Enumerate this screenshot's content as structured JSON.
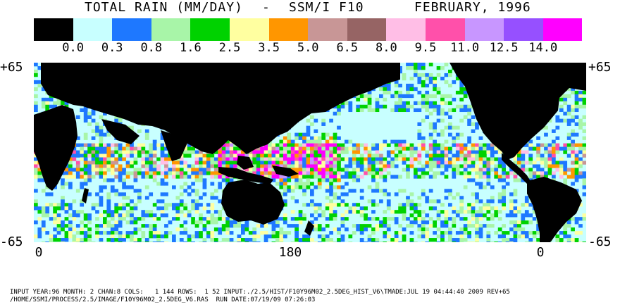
{
  "header": {
    "title_left": "TOTAL RAIN (MM/DAY)",
    "title_dash": "-",
    "title_sensor": "SSM/I F10",
    "title_date": "FEBRUARY, 1996"
  },
  "legend": {
    "colors": [
      "#000000",
      "#c8ffff",
      "#1e78ff",
      "#a8f5a8",
      "#00d200",
      "#ffffa0",
      "#ff9600",
      "#c89696",
      "#966464",
      "#ffbee6",
      "#ff50aa",
      "#c896ff",
      "#9650ff",
      "#ff00ff"
    ],
    "labels": [
      "0.0",
      "0.3",
      "0.8",
      "1.6",
      "2.5",
      "3.5",
      "5.0",
      "6.5",
      "8.0",
      "9.5",
      "11.0",
      "12.5",
      "14.0"
    ]
  },
  "axes": {
    "lat_top": "+65",
    "lat_bottom": "-65",
    "lon_labels": [
      "0",
      "180",
      "0"
    ]
  },
  "footer": {
    "line1": "INPUT YEAR:96 MONTH: 2 CHAN:8 COLS:   1 144 ROWS:  1 52 INPUT:./2.5/HIST/F10Y96M02_2.5DEG_HIST_V6\\TMADE:JUL 19 04:44:40 2009 REV+65",
    "line2": "/HOME/SSMI/PROCESS/2.5/IMAGE/F10Y96M02_2.5DEG_V6.RAS  RUN DATE:07/19/09 07:26:03"
  }
}
